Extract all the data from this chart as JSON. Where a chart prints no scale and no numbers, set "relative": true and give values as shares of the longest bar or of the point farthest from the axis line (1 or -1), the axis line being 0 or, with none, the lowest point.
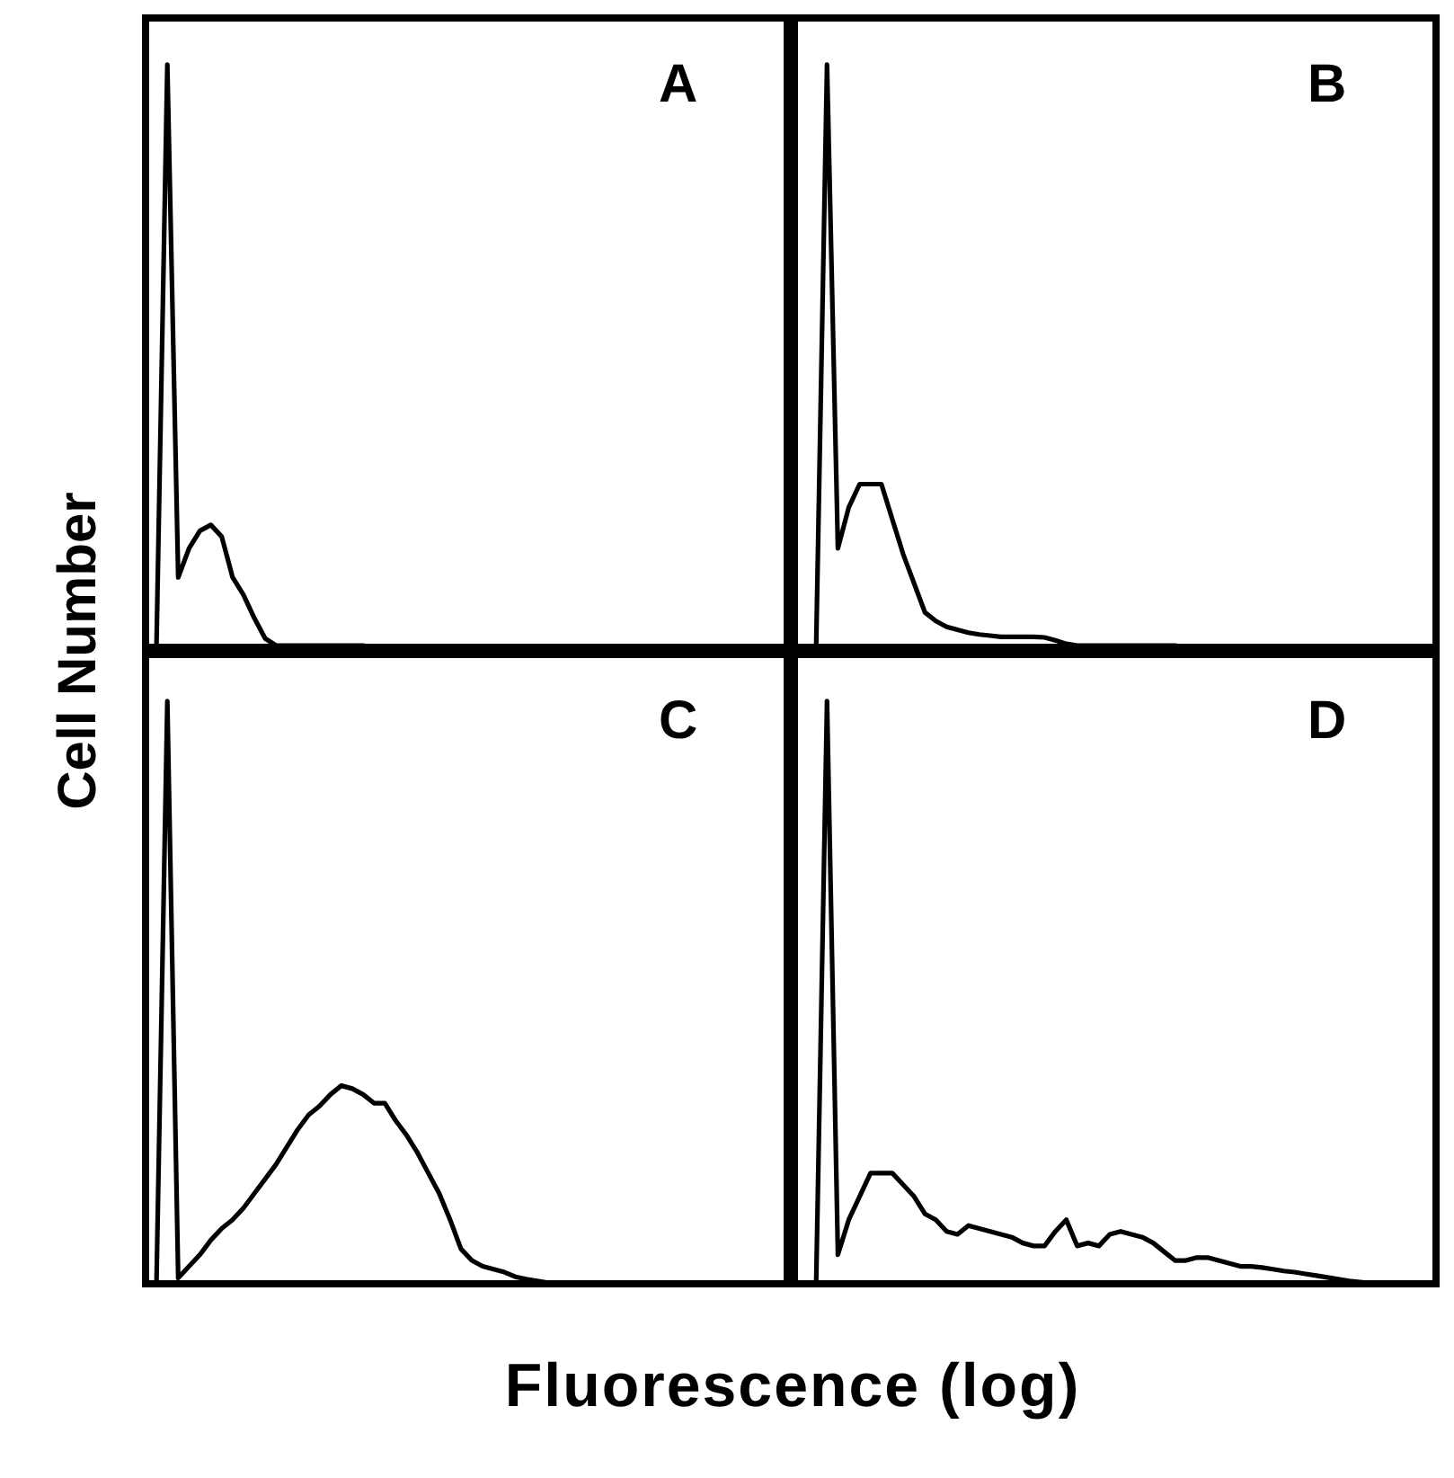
{
  "chart_data": [
    {
      "type": "line",
      "title": "A",
      "ylabel": "Cell Number",
      "relative": true,
      "marker": "none",
      "line_style": "solid",
      "grid": false,
      "legend": false,
      "categories": [
        null,
        null,
        null,
        null,
        null,
        null,
        null,
        null,
        null,
        null,
        null,
        null,
        null,
        null,
        null,
        null,
        null,
        null,
        null,
        null,
        null,
        null,
        null,
        null,
        null,
        null,
        null,
        null,
        null,
        null,
        null,
        null,
        null,
        null,
        null,
        null,
        null,
        null,
        null,
        null,
        null,
        null,
        null,
        null,
        null,
        null,
        null,
        null,
        null,
        null,
        null,
        null,
        null,
        null,
        null,
        null,
        null,
        null,
        null,
        null
      ],
      "series": [
        {
          "color": "#000000",
          "values": [
            0,
            0,
            1,
            0.12,
            0.17,
            0.2,
            0.21,
            0.19,
            0.12,
            0.09,
            0.05,
            0.015,
            0.003,
            0.003,
            0.003,
            0.003,
            0.003,
            0.003,
            0.003,
            0.003,
            0.003,
            0,
            0,
            0,
            0,
            0,
            0,
            0,
            0,
            0,
            0,
            0,
            0,
            0,
            0,
            0,
            0,
            0,
            0,
            0,
            0,
            0,
            0,
            0,
            0,
            0,
            0,
            0,
            0,
            0,
            0,
            0,
            0,
            0,
            0,
            0,
            0,
            0,
            0,
            0
          ]
        }
      ]
    },
    {
      "type": "line",
      "title": "B",
      "relative": true,
      "marker": "none",
      "line_style": "solid",
      "grid": false,
      "legend": false,
      "categories": [
        null,
        null,
        null,
        null,
        null,
        null,
        null,
        null,
        null,
        null,
        null,
        null,
        null,
        null,
        null,
        null,
        null,
        null,
        null,
        null,
        null,
        null,
        null,
        null,
        null,
        null,
        null,
        null,
        null,
        null,
        null,
        null,
        null,
        null,
        null,
        null,
        null,
        null,
        null,
        null,
        null,
        null,
        null,
        null,
        null,
        null,
        null,
        null,
        null,
        null,
        null,
        null,
        null,
        null,
        null,
        null,
        null,
        null,
        null,
        null
      ],
      "series": [
        {
          "color": "#000000",
          "values": [
            0,
            0,
            0,
            1,
            0.17,
            0.24,
            0.28,
            0.28,
            0.28,
            0.22,
            0.16,
            0.11,
            0.06,
            0.045,
            0.035,
            0.03,
            0.025,
            0.022,
            0.02,
            0.018,
            0.018,
            0.018,
            0.018,
            0.017,
            0.012,
            0.006,
            0.003,
            0.003,
            0.003,
            0.003,
            0.003,
            0.003,
            0.003,
            0.003,
            0.003,
            0.003,
            0,
            0,
            0,
            0,
            0,
            0,
            0,
            0,
            0,
            0,
            0,
            0,
            0,
            0,
            0,
            0,
            0,
            0,
            0,
            0,
            0,
            0,
            0,
            0
          ]
        }
      ]
    },
    {
      "type": "line",
      "title": "C",
      "xlabel": "Fluorescence (log)",
      "relative": true,
      "marker": "none",
      "line_style": "solid",
      "grid": false,
      "legend": false,
      "categories": [
        null,
        null,
        null,
        null,
        null,
        null,
        null,
        null,
        null,
        null,
        null,
        null,
        null,
        null,
        null,
        null,
        null,
        null,
        null,
        null,
        null,
        null,
        null,
        null,
        null,
        null,
        null,
        null,
        null,
        null,
        null,
        null,
        null,
        null,
        null,
        null,
        null,
        null,
        null,
        null,
        null,
        null,
        null,
        null,
        null,
        null,
        null,
        null,
        null,
        null,
        null,
        null,
        null,
        null,
        null,
        null,
        null,
        null,
        null,
        null
      ],
      "series": [
        {
          "color": "#000000",
          "values": [
            0,
            0,
            1,
            0.01,
            0.03,
            0.05,
            0.075,
            0.095,
            0.11,
            0.13,
            0.155,
            0.18,
            0.205,
            0.235,
            0.265,
            0.29,
            0.305,
            0.325,
            0.34,
            0.335,
            0.325,
            0.31,
            0.31,
            0.28,
            0.255,
            0.225,
            0.19,
            0.155,
            0.11,
            0.06,
            0.04,
            0.03,
            0.025,
            0.02,
            0.012,
            0.008,
            0.005,
            0.002,
            0,
            0,
            0,
            0,
            0,
            0,
            0,
            0,
            0,
            0,
            0,
            0,
            0,
            0,
            0,
            0,
            0,
            0,
            0,
            0,
            0,
            0
          ]
        }
      ]
    },
    {
      "type": "line",
      "title": "D",
      "relative": true,
      "marker": "none",
      "line_style": "solid",
      "grid": false,
      "legend": false,
      "categories": [
        null,
        null,
        null,
        null,
        null,
        null,
        null,
        null,
        null,
        null,
        null,
        null,
        null,
        null,
        null,
        null,
        null,
        null,
        null,
        null,
        null,
        null,
        null,
        null,
        null,
        null,
        null,
        null,
        null,
        null,
        null,
        null,
        null,
        null,
        null,
        null,
        null,
        null,
        null,
        null,
        null,
        null,
        null,
        null,
        null,
        null,
        null,
        null,
        null,
        null,
        null,
        null,
        null,
        null,
        null,
        null,
        null,
        null,
        null,
        null
      ],
      "series": [
        {
          "color": "#000000",
          "values": [
            0,
            0,
            0,
            1,
            0.05,
            0.11,
            0.15,
            0.19,
            0.19,
            0.19,
            0.17,
            0.15,
            0.12,
            0.11,
            0.09,
            0.085,
            0.1,
            0.095,
            0.09,
            0.085,
            0.08,
            0.07,
            0.065,
            0.065,
            0.09,
            0.11,
            0.065,
            0.07,
            0.065,
            0.085,
            0.09,
            0.085,
            0.08,
            0.07,
            0.055,
            0.04,
            0.04,
            0.045,
            0.045,
            0.04,
            0.035,
            0.03,
            0.03,
            0.028,
            0.025,
            0.022,
            0.02,
            0.017,
            0.014,
            0.011,
            0.008,
            0.005,
            0.003,
            0.001,
            0,
            0,
            0,
            0,
            0,
            0
          ]
        }
      ]
    }
  ]
}
